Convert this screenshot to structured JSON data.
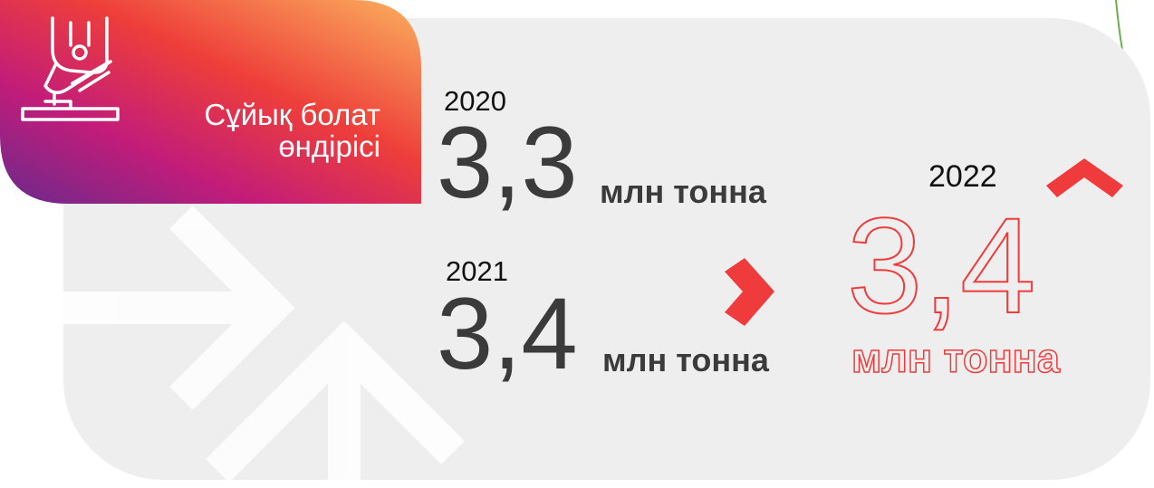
{
  "header": {
    "title_lines": [
      "Сұйық болат",
      "өндірісі"
    ]
  },
  "items": [
    {
      "year": "2020",
      "value": "3,3",
      "unit": "млн тонна"
    },
    {
      "year": "2021",
      "value": "3,4",
      "unit": "млн тонна"
    },
    {
      "year": "2022",
      "value": "3,4",
      "unit": "млн тонна"
    }
  ]
}
